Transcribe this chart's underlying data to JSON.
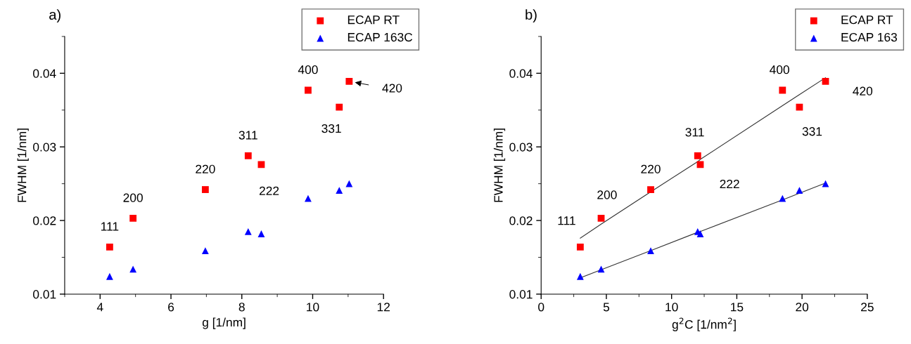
{
  "chart_data": [
    {
      "type": "scatter",
      "title": "a)",
      "xlabel": "g [1/nm]",
      "ylabel": "FWHM [1/nm]",
      "x": [
        4.27,
        4.93,
        6.97,
        8.18,
        8.55,
        9.87,
        10.75,
        11.03
      ],
      "series": [
        {
          "name": "ECAP RT",
          "color": "#ff0000",
          "marker": "square",
          "values": [
            0.0164,
            0.0203,
            0.0242,
            0.0288,
            0.0276,
            0.0377,
            0.0354,
            0.0389
          ]
        },
        {
          "name": "ECAP 163C",
          "color": "#0000ff",
          "marker": "triangle",
          "values": [
            0.0124,
            0.0134,
            0.0159,
            0.0185,
            0.0182,
            0.023,
            0.0241,
            0.025
          ]
        }
      ],
      "annotations": [
        {
          "text": "111",
          "x": 4.27,
          "y": 0.0164
        },
        {
          "text": "200",
          "x": 4.93,
          "y": 0.0203
        },
        {
          "text": "220",
          "x": 6.97,
          "y": 0.0242
        },
        {
          "text": "311",
          "x": 8.18,
          "y": 0.0288
        },
        {
          "text": "222",
          "x": 8.55,
          "y": 0.0276
        },
        {
          "text": "400",
          "x": 9.87,
          "y": 0.0377
        },
        {
          "text": "331",
          "x": 10.75,
          "y": 0.0354
        },
        {
          "text": "420",
          "x": 11.03,
          "y": 0.0389
        }
      ],
      "xlim": [
        3,
        12
      ],
      "xticks": [
        4,
        6,
        8,
        10,
        12
      ],
      "ylim": [
        0.01,
        0.045
      ],
      "yticks": [
        0.01,
        0.02,
        0.03,
        0.04
      ],
      "legend": "top right",
      "grid": false
    },
    {
      "type": "scatter",
      "title": "b)",
      "xlabel": "g$^{2}$C [1/nm$^{2}$]",
      "ylabel": "FWHM [1/nm]",
      "x": [
        3.0,
        4.6,
        8.4,
        12.0,
        12.2,
        18.5,
        19.8,
        21.8
      ],
      "series": [
        {
          "name": "ECAP RT",
          "color": "#ff0000",
          "marker": "square",
          "values": [
            0.0164,
            0.0203,
            0.0242,
            0.0288,
            0.0276,
            0.0377,
            0.0354,
            0.0389
          ]
        },
        {
          "name": "ECAP 163",
          "color": "#0000ff",
          "marker": "triangle",
          "values": [
            0.0124,
            0.0134,
            0.0159,
            0.0185,
            0.0182,
            0.023,
            0.0241,
            0.025
          ]
        },
        {
          "type": "line",
          "color": "#333333",
          "values": [
            0.0176,
            0.0195,
            0.0239,
            0.028,
            0.0283,
            0.0356,
            0.0371,
            0.0394
          ]
        },
        {
          "type": "line",
          "color": "#333333",
          "values": [
            0.0122,
            0.0133,
            0.0159,
            0.0184,
            0.0185,
            0.0228,
            0.0237,
            0.0251
          ]
        }
      ],
      "annotations": [
        {
          "text": "111",
          "x": 3.0,
          "y": 0.0164
        },
        {
          "text": "200",
          "x": 4.6,
          "y": 0.0203
        },
        {
          "text": "220",
          "x": 8.4,
          "y": 0.0242
        },
        {
          "text": "311",
          "x": 12.0,
          "y": 0.0288
        },
        {
          "text": "222",
          "x": 12.2,
          "y": 0.0276
        },
        {
          "text": "400",
          "x": 18.5,
          "y": 0.0377
        },
        {
          "text": "331",
          "x": 19.8,
          "y": 0.0354
        },
        {
          "text": "420",
          "x": 21.8,
          "y": 0.0389
        }
      ],
      "xlim": [
        0,
        25
      ],
      "xticks": [
        0,
        5,
        10,
        15,
        20,
        25
      ],
      "ylim": [
        0.01,
        0.045
      ],
      "yticks": [
        0.01,
        0.02,
        0.03,
        0.04
      ],
      "legend": "top right",
      "grid": false
    }
  ]
}
